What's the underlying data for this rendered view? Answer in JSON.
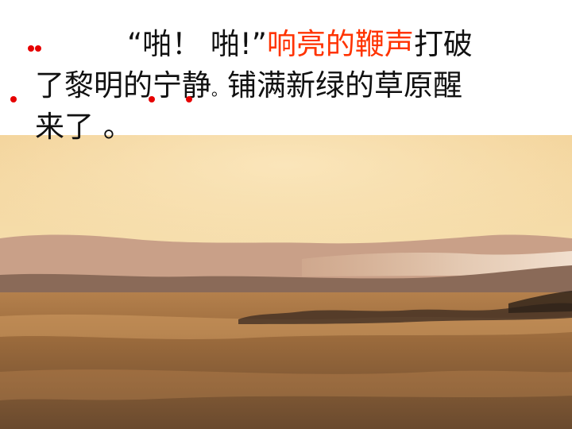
{
  "slide": {
    "line1": {
      "prefix": "“啪！ 啪!”",
      "highlight": "响亮的鞭声",
      "suffix": "打破"
    },
    "line2": {
      "part1": "了黎明的宁静",
      "period": "。",
      "part2": "铺满新绿的草原醒"
    },
    "line3": {
      "text": "来了  。"
    }
  },
  "colors": {
    "highlight": "#ff3300",
    "emphasis_dot": "#e60000"
  },
  "photo": {
    "subject": "grassland-dawn-landscape"
  }
}
